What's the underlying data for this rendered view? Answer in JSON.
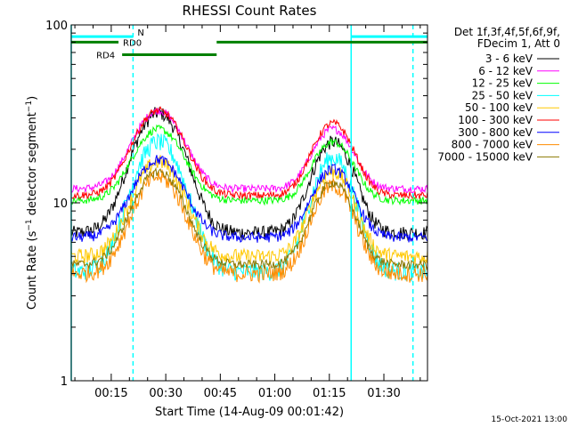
{
  "chart_data": {
    "type": "line",
    "title": "RHESSI Count Rates",
    "xlabel": "Start Time (14-Aug-09 00:01:42)",
    "ylabel": "Count Rate (s⁻¹ detector segment⁻¹)",
    "ylabel_parts": {
      "a": "Count Rate (s",
      "sup1": "−1",
      "b": " detector segment",
      "sup2": "−1",
      "c": ")"
    },
    "yscale": "log",
    "ylim": [
      1,
      100
    ],
    "y_ticks": [
      {
        "v": 1,
        "label": "1"
      },
      {
        "v": 10,
        "label": "10"
      },
      {
        "v": 100,
        "label": "100"
      }
    ],
    "xlim_min": [
      4,
      102
    ],
    "x_ticks": [
      {
        "min": 15,
        "label": "00:15"
      },
      {
        "min": 30,
        "label": "00:30"
      },
      {
        "min": 45,
        "label": "00:45"
      },
      {
        "min": 60,
        "label": "01:00"
      },
      {
        "min": 75,
        "label": "01:15"
      },
      {
        "min": 90,
        "label": "01:30"
      }
    ],
    "legend_header": [
      "Det 1f,3f,4f,5f,6f,9f,",
      "FDecim 1, Att 0"
    ],
    "legend_position": "right",
    "series": [
      {
        "name": "3 - 6 keV",
        "color": "#000000",
        "base": 6.8,
        "peak1": 32,
        "peak2": 22,
        "noise": 0.09
      },
      {
        "name": "6 - 12 keV",
        "color": "#ff00ff",
        "base": 12.0,
        "peak1": 33,
        "peak2": 26,
        "noise": 0.05
      },
      {
        "name": "12 - 25 keV",
        "color": "#00ff00",
        "base": 10.3,
        "peak1": 26,
        "peak2": 22,
        "noise": 0.05
      },
      {
        "name": "25 - 50 keV",
        "color": "#00ffff",
        "base": 4.1,
        "peak1": 22,
        "peak2": 18,
        "noise": 0.12
      },
      {
        "name": "50 - 100 keV",
        "color": "#ffc800",
        "base": 5.0,
        "peak1": 17,
        "peak2": 15,
        "noise": 0.1
      },
      {
        "name": "100 - 300 keV",
        "color": "#ff0000",
        "base": 11.0,
        "peak1": 33,
        "peak2": 28,
        "noise": 0.05
      },
      {
        "name": "300 - 800 keV",
        "color": "#0000ff",
        "base": 6.4,
        "peak1": 17.5,
        "peak2": 15.5,
        "noise": 0.07
      },
      {
        "name": "800 - 7000 keV",
        "color": "#ff8c00",
        "base": 4.0,
        "peak1": 14,
        "peak2": 12.5,
        "noise": 0.11
      },
      {
        "name": "7000 - 15000 keV",
        "color": "#8c7800",
        "base": 4.5,
        "peak1": 15,
        "peak2": 13,
        "noise": 0.06
      }
    ],
    "night_boundaries_min": [
      4,
      21,
      81,
      98
    ],
    "flags": [
      {
        "label": "N",
        "color": "#00ffff",
        "y_level": 86,
        "ranges": [
          [
            4,
            21
          ],
          [
            81,
            102
          ]
        ]
      },
      {
        "label": "RD0",
        "color": "#008000",
        "y_level": 80,
        "ranges": [
          [
            4,
            17
          ],
          [
            44,
            102
          ]
        ]
      },
      {
        "label": "RD4",
        "color": "#008000",
        "y_level": 68,
        "ranges": [
          [
            18,
            44
          ]
        ]
      }
    ],
    "timestamp": "15-Oct-2021 13:00"
  }
}
